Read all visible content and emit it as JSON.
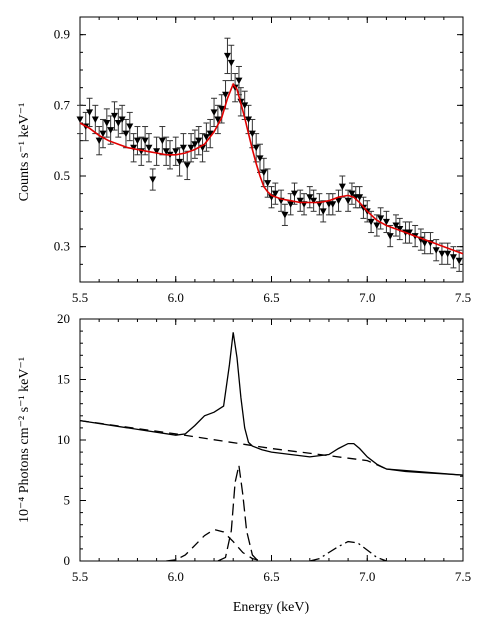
{
  "chart_data": [
    {
      "type": "scatter",
      "ylabel": "Counts s⁻¹ keV⁻¹",
      "xlim": [
        5.5,
        7.5
      ],
      "ylim": [
        0.2,
        0.95
      ],
      "x_ticks": [
        "5.5",
        "6.0",
        "6.5",
        "7.0",
        "7.5"
      ],
      "y_ticks": [
        {
          "value": 0.3,
          "label": "0.3"
        },
        {
          "value": 0.5,
          "label": "0.5"
        },
        {
          "value": 0.7,
          "label": "0.7"
        },
        {
          "value": 0.9,
          "label": "0.9"
        }
      ],
      "colors": {
        "data": "#000000",
        "model": "#e00000"
      },
      "series": [
        {
          "kind": "data",
          "marker": "inverted-triangle",
          "points": [
            [
              5.5,
              0.66,
              0.04
            ],
            [
              5.53,
              0.64,
              0.04
            ],
            [
              5.55,
              0.68,
              0.04
            ],
            [
              5.58,
              0.66,
              0.04
            ],
            [
              5.6,
              0.6,
              0.04
            ],
            [
              5.62,
              0.62,
              0.04
            ],
            [
              5.64,
              0.65,
              0.04
            ],
            [
              5.66,
              0.63,
              0.04
            ],
            [
              5.68,
              0.67,
              0.04
            ],
            [
              5.7,
              0.65,
              0.04
            ],
            [
              5.72,
              0.66,
              0.04
            ],
            [
              5.74,
              0.62,
              0.04
            ],
            [
              5.76,
              0.64,
              0.04
            ],
            [
              5.78,
              0.58,
              0.04
            ],
            [
              5.8,
              0.6,
              0.04
            ],
            [
              5.82,
              0.57,
              0.04
            ],
            [
              5.84,
              0.6,
              0.04
            ],
            [
              5.86,
              0.58,
              0.04
            ],
            [
              5.88,
              0.49,
              0.03
            ],
            [
              5.9,
              0.57,
              0.04
            ],
            [
              5.93,
              0.6,
              0.04
            ],
            [
              5.95,
              0.57,
              0.04
            ],
            [
              5.97,
              0.56,
              0.04
            ],
            [
              6.0,
              0.57,
              0.04
            ],
            [
              6.02,
              0.54,
              0.04
            ],
            [
              6.04,
              0.58,
              0.04
            ],
            [
              6.06,
              0.53,
              0.04
            ],
            [
              6.08,
              0.58,
              0.04
            ],
            [
              6.1,
              0.59,
              0.04
            ],
            [
              6.12,
              0.6,
              0.04
            ],
            [
              6.14,
              0.58,
              0.04
            ],
            [
              6.16,
              0.61,
              0.04
            ],
            [
              6.18,
              0.62,
              0.04
            ],
            [
              6.2,
              0.68,
              0.04
            ],
            [
              6.22,
              0.66,
              0.04
            ],
            [
              6.24,
              0.69,
              0.04
            ],
            [
              6.26,
              0.73,
              0.04
            ],
            [
              6.27,
              0.84,
              0.05
            ],
            [
              6.29,
              0.82,
              0.05
            ],
            [
              6.31,
              0.75,
              0.04
            ],
            [
              6.33,
              0.77,
              0.04
            ],
            [
              6.34,
              0.71,
              0.04
            ],
            [
              6.36,
              0.7,
              0.04
            ],
            [
              6.38,
              0.66,
              0.04
            ],
            [
              6.4,
              0.62,
              0.04
            ],
            [
              6.42,
              0.58,
              0.04
            ],
            [
              6.44,
              0.55,
              0.04
            ],
            [
              6.46,
              0.51,
              0.04
            ],
            [
              6.48,
              0.48,
              0.04
            ],
            [
              6.5,
              0.44,
              0.03
            ],
            [
              6.52,
              0.45,
              0.03
            ],
            [
              6.55,
              0.43,
              0.03
            ],
            [
              6.57,
              0.39,
              0.03
            ],
            [
              6.6,
              0.42,
              0.03
            ],
            [
              6.62,
              0.45,
              0.03
            ],
            [
              6.65,
              0.43,
              0.03
            ],
            [
              6.67,
              0.42,
              0.03
            ],
            [
              6.7,
              0.44,
              0.03
            ],
            [
              6.72,
              0.43,
              0.03
            ],
            [
              6.75,
              0.42,
              0.03
            ],
            [
              6.77,
              0.4,
              0.03
            ],
            [
              6.8,
              0.42,
              0.03
            ],
            [
              6.82,
              0.42,
              0.03
            ],
            [
              6.85,
              0.43,
              0.03
            ],
            [
              6.87,
              0.47,
              0.03
            ],
            [
              6.9,
              0.43,
              0.03
            ],
            [
              6.92,
              0.45,
              0.03
            ],
            [
              6.94,
              0.44,
              0.03
            ],
            [
              6.96,
              0.44,
              0.03
            ],
            [
              6.98,
              0.41,
              0.03
            ],
            [
              7.0,
              0.4,
              0.03
            ],
            [
              7.02,
              0.37,
              0.03
            ],
            [
              7.05,
              0.36,
              0.03
            ],
            [
              7.07,
              0.38,
              0.03
            ],
            [
              7.1,
              0.37,
              0.03
            ],
            [
              7.12,
              0.33,
              0.03
            ],
            [
              7.15,
              0.36,
              0.03
            ],
            [
              7.17,
              0.35,
              0.03
            ],
            [
              7.2,
              0.34,
              0.03
            ],
            [
              7.22,
              0.34,
              0.03
            ],
            [
              7.25,
              0.33,
              0.03
            ],
            [
              7.28,
              0.32,
              0.03
            ],
            [
              7.3,
              0.31,
              0.03
            ],
            [
              7.33,
              0.31,
              0.03
            ],
            [
              7.36,
              0.29,
              0.03
            ],
            [
              7.39,
              0.28,
              0.03
            ],
            [
              7.42,
              0.28,
              0.03
            ],
            [
              7.45,
              0.27,
              0.03
            ],
            [
              7.48,
              0.26,
              0.03
            ]
          ]
        },
        {
          "kind": "model",
          "points": [
            [
              5.5,
              0.65
            ],
            [
              5.55,
              0.635
            ],
            [
              5.6,
              0.615
            ],
            [
              5.65,
              0.6
            ],
            [
              5.7,
              0.59
            ],
            [
              5.75,
              0.58
            ],
            [
              5.8,
              0.575
            ],
            [
              5.85,
              0.57
            ],
            [
              5.9,
              0.565
            ],
            [
              5.95,
              0.56
            ],
            [
              6.0,
              0.56
            ],
            [
              6.05,
              0.565
            ],
            [
              6.1,
              0.575
            ],
            [
              6.15,
              0.59
            ],
            [
              6.2,
              0.625
            ],
            [
              6.24,
              0.665
            ],
            [
              6.27,
              0.72
            ],
            [
              6.3,
              0.76
            ],
            [
              6.32,
              0.745
            ],
            [
              6.34,
              0.705
            ],
            [
              6.36,
              0.665
            ],
            [
              6.38,
              0.62
            ],
            [
              6.4,
              0.575
            ],
            [
              6.42,
              0.535
            ],
            [
              6.44,
              0.5
            ],
            [
              6.46,
              0.47
            ],
            [
              6.48,
              0.455
            ],
            [
              6.5,
              0.445
            ],
            [
              6.55,
              0.435
            ],
            [
              6.6,
              0.43
            ],
            [
              6.65,
              0.425
            ],
            [
              6.7,
              0.425
            ],
            [
              6.75,
              0.425
            ],
            [
              6.8,
              0.43
            ],
            [
              6.85,
              0.44
            ],
            [
              6.9,
              0.445
            ],
            [
              6.93,
              0.44
            ],
            [
              6.96,
              0.425
            ],
            [
              7.0,
              0.4
            ],
            [
              7.05,
              0.375
            ],
            [
              7.1,
              0.36
            ],
            [
              7.15,
              0.35
            ],
            [
              7.2,
              0.34
            ],
            [
              7.25,
              0.33
            ],
            [
              7.3,
              0.32
            ],
            [
              7.35,
              0.31
            ],
            [
              7.4,
              0.3
            ],
            [
              7.45,
              0.29
            ],
            [
              7.5,
              0.28
            ]
          ]
        }
      ]
    },
    {
      "type": "line",
      "xlabel": "Energy (keV)",
      "ylabel": "10⁻⁴ Photons cm⁻² s⁻¹ keV⁻¹",
      "xlim": [
        5.5,
        7.5
      ],
      "ylim": [
        0,
        20
      ],
      "x_ticks": [
        "5.5",
        "6.0",
        "6.5",
        "7.0",
        "7.5"
      ],
      "y_ticks": [
        {
          "value": 0,
          "label": "0"
        },
        {
          "value": 5,
          "label": "5"
        },
        {
          "value": 10,
          "label": "10"
        },
        {
          "value": 15,
          "label": "15"
        },
        {
          "value": 20,
          "label": "20"
        }
      ],
      "series": [
        {
          "kind": "total",
          "style": "solid",
          "x": [
            5.5,
            6.0,
            6.05,
            6.1,
            6.15,
            6.2,
            6.25,
            6.28,
            6.3,
            6.32,
            6.34,
            6.36,
            6.38,
            6.4,
            6.45,
            6.5,
            6.6,
            6.7,
            6.8,
            6.85,
            6.9,
            6.93,
            6.96,
            7.0,
            7.05,
            7.1,
            7.2,
            7.3,
            7.4,
            7.5
          ],
          "y": [
            11.6,
            10.4,
            10.5,
            11.2,
            12.0,
            12.3,
            12.8,
            16.2,
            18.9,
            16.8,
            13.5,
            11.0,
            9.8,
            9.5,
            9.2,
            9.0,
            8.8,
            8.6,
            8.8,
            9.3,
            9.7,
            9.7,
            9.3,
            8.6,
            8.0,
            7.6,
            7.4,
            7.3,
            7.2,
            7.1
          ]
        },
        {
          "kind": "continuum-dashed",
          "style": "dashed",
          "x": [
            5.5,
            6.0,
            6.5,
            6.8,
            7.0,
            7.1
          ],
          "y": [
            11.6,
            10.5,
            9.3,
            8.7,
            8.3,
            7.6
          ]
        },
        {
          "kind": "continuum-solid",
          "style": "solid",
          "x": [
            7.1,
            7.5
          ],
          "y": [
            7.6,
            7.1
          ]
        },
        {
          "kind": "broad-line",
          "style": "dashed",
          "x": [
            5.95,
            6.0,
            6.05,
            6.1,
            6.15,
            6.2,
            6.25,
            6.3,
            6.35,
            6.4,
            6.45
          ],
          "y": [
            0,
            0.1,
            0.5,
            1.3,
            2.1,
            2.6,
            2.4,
            1.6,
            0.7,
            0.2,
            0
          ]
        },
        {
          "kind": "narrow-line",
          "style": "long-dash",
          "x": [
            6.22,
            6.26,
            6.29,
            6.31,
            6.33,
            6.35,
            6.37,
            6.4,
            6.43
          ],
          "y": [
            0,
            0.3,
            2.5,
            6.5,
            7.9,
            5.5,
            2.5,
            0.5,
            0
          ]
        },
        {
          "kind": "line-7.0",
          "style": "dash-dot",
          "x": [
            6.7,
            6.75,
            6.8,
            6.85,
            6.9,
            6.95,
            7.0,
            7.05,
            7.1
          ],
          "y": [
            0,
            0.2,
            0.7,
            1.2,
            1.6,
            1.5,
            0.9,
            0.3,
            0
          ]
        }
      ]
    }
  ]
}
